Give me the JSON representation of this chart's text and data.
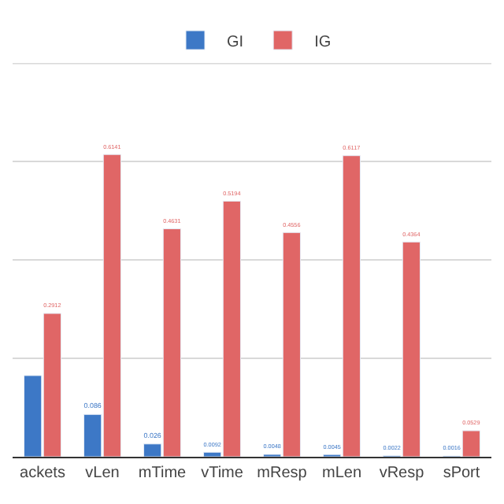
{
  "chart_data": {
    "type": "bar",
    "categories": [
      "ackets",
      "vLen",
      "mTime",
      "vTime",
      "mResp",
      "mLen",
      "vResp",
      "sPort"
    ],
    "series": [
      {
        "name": "GI",
        "color": "#3d78c6",
        "values": [
          0.165,
          0.086,
          0.026,
          0.0092,
          0.0048,
          0.0045,
          0.0022,
          0.0016
        ],
        "value_labels": [
          null,
          "0.086",
          "0.026",
          "0.0092",
          "0.0048",
          "0.0045",
          "0.0022",
          "0.0016"
        ]
      },
      {
        "name": "IG",
        "color": "#e06666",
        "values": [
          0.2912,
          0.6141,
          0.4631,
          0.5194,
          0.4556,
          0.6117,
          0.4364,
          0.0529
        ],
        "value_labels": [
          "0.2912",
          "0.6141",
          "0.4631",
          "0.5194",
          "0.4556",
          "0.6117",
          "0.4364",
          "0.0529"
        ]
      }
    ],
    "ylim": [
      0,
      0.8
    ],
    "yticks": [
      {
        "value": 0,
        "label": null
      },
      {
        "value": 0.2,
        "label": null
      },
      {
        "value": 0.4,
        "label": null
      },
      {
        "value": 0.6,
        "label": null
      }
    ],
    "grid": "y",
    "legend": "top",
    "tick_labels": "x"
  }
}
